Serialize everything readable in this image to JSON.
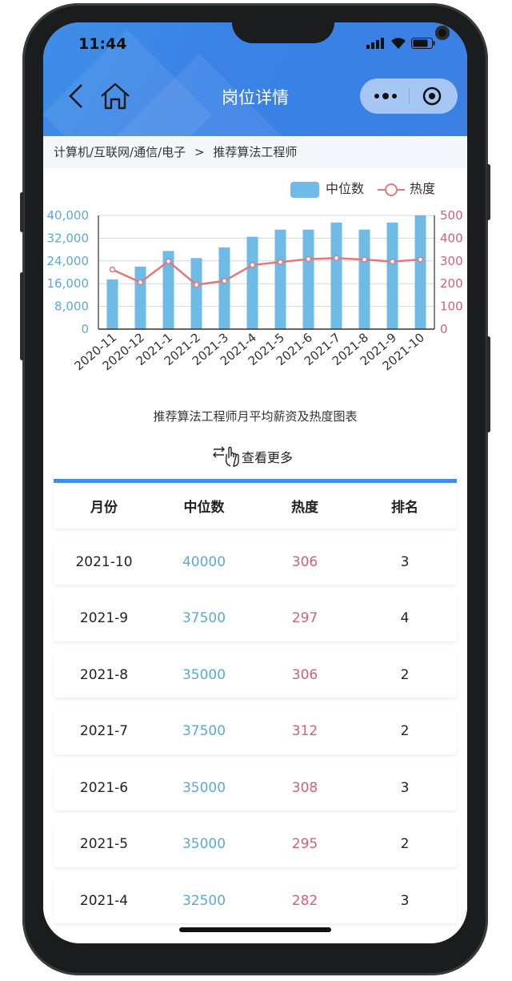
{
  "status_bar": {
    "time": "11:44",
    "icons": [
      "signal-icon",
      "wifi-icon",
      "battery-icon"
    ]
  },
  "nav": {
    "title": "岗位详情",
    "back_icon": "chevron-left-icon",
    "home_icon": "home-icon",
    "more_icon": "more-dots-icon",
    "close_icon": "target-circle-icon"
  },
  "breadcrumb": {
    "category": "计算机/互联网/通信/电子",
    "separator": ">",
    "job": "推荐算法工程师"
  },
  "colors": {
    "header": "#3b82e6",
    "bar": "#6fbbe8",
    "line": "#e07a7a",
    "left_axis": "#5aaad6",
    "right_axis": "#d4607a"
  },
  "chart_data": {
    "type": "bar+line",
    "title": "推荐算法工程师月平均薪资及热度图表",
    "categories": [
      "2020-11",
      "2020-12",
      "2021-1",
      "2021-2",
      "2021-3",
      "2021-4",
      "2021-5",
      "2021-6",
      "2021-7",
      "2021-8",
      "2021-9",
      "2021-10"
    ],
    "series": [
      {
        "name": "中位数",
        "type": "bar",
        "axis": "left",
        "values": [
          17500,
          22000,
          27500,
          25000,
          28750,
          32500,
          35000,
          35000,
          37500,
          35000,
          37500,
          40000
        ]
      },
      {
        "name": "热度",
        "type": "line",
        "axis": "right",
        "values": [
          262,
          206,
          298,
          195,
          212,
          282,
          295,
          308,
          312,
          306,
          297,
          306
        ]
      }
    ],
    "left_ylim": [
      0,
      40000
    ],
    "left_ticks": [
      "0",
      "8,000",
      "16,000",
      "24,000",
      "32,000",
      "40,000"
    ],
    "right_ylim": [
      0,
      500
    ],
    "right_ticks": [
      "0",
      "100",
      "200",
      "300",
      "400",
      "500"
    ],
    "grid": true,
    "legend": "top-right"
  },
  "more_link": {
    "label": "查看更多",
    "icon": "hand-pointer-icon"
  },
  "table": {
    "headers": [
      "月份",
      "中位数",
      "热度",
      "排名"
    ],
    "rows": [
      [
        "2021-10",
        "40000",
        "306",
        "3"
      ],
      [
        "2021-9",
        "37500",
        "297",
        "4"
      ],
      [
        "2021-8",
        "35000",
        "306",
        "2"
      ],
      [
        "2021-7",
        "37500",
        "312",
        "2"
      ],
      [
        "2021-6",
        "35000",
        "308",
        "3"
      ],
      [
        "2021-5",
        "35000",
        "295",
        "2"
      ],
      [
        "2021-4",
        "32500",
        "282",
        "3"
      ]
    ]
  }
}
